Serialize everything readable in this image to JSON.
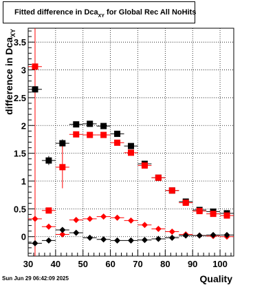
{
  "title": {
    "text": "Fitted difference in Dca",
    "subscript": "XY",
    "suffix": " for Global Rec All NoHits"
  },
  "footer": {
    "date": "Sun Jun 29 06:42:09 2025"
  },
  "chart_data": {
    "type": "scatter",
    "title": "Fitted difference in Dca_XY for Global Rec All NoHits",
    "xlabel": "Quality",
    "ylabel": "difference in Dca_XY",
    "xlim": [
      30,
      105
    ],
    "ylim": [
      -0.35,
      3.75
    ],
    "xticks": [
      30,
      40,
      50,
      60,
      70,
      80,
      90,
      100
    ],
    "yticks": [
      0,
      0.5,
      1,
      1.5,
      2,
      2.5,
      3,
      3.5
    ],
    "grid": true,
    "vertical_line_x": 32.5,
    "colors": {
      "black": "#000000",
      "red": "#ff0000"
    },
    "series": [
      {
        "marker": "square",
        "color": "#000000",
        "points": [
          {
            "x": 32.5,
            "y": 2.65,
            "err": 0.03
          },
          {
            "x": 37.5,
            "y": 1.37,
            "err": 0.08
          },
          {
            "x": 42.5,
            "y": 1.68,
            "err": 0.07
          },
          {
            "x": 47.5,
            "y": 2.02,
            "err": 0.02
          },
          {
            "x": 52.5,
            "y": 2.03,
            "err": 0.02
          },
          {
            "x": 57.5,
            "y": 1.99,
            "err": 0.02
          },
          {
            "x": 62.5,
            "y": 1.85,
            "err": 0.02
          },
          {
            "x": 67.5,
            "y": 1.63,
            "err": 0.02
          },
          {
            "x": 72.5,
            "y": 1.31,
            "err": 0.02
          },
          {
            "x": 77.5,
            "y": 1.06,
            "err": 0.02
          },
          {
            "x": 82.5,
            "y": 0.83,
            "err": 0.02
          },
          {
            "x": 87.5,
            "y": 0.63,
            "err": 0.02
          },
          {
            "x": 92.5,
            "y": 0.48,
            "err": 0.02
          },
          {
            "x": 97.5,
            "y": 0.45,
            "err": 0.02
          },
          {
            "x": 102.5,
            "y": 0.42,
            "err": 0.02
          }
        ]
      },
      {
        "marker": "square",
        "color": "#ff0000",
        "points": [
          {
            "x": 32.5,
            "y": 3.06,
            "err": 0.03
          },
          {
            "x": 37.5,
            "y": 0.47,
            "err": 0.03
          },
          {
            "x": 42.5,
            "y": 1.25,
            "err": 0.38
          },
          {
            "x": 47.5,
            "y": 1.84,
            "err": 0.02
          },
          {
            "x": 52.5,
            "y": 1.83,
            "err": 0.02
          },
          {
            "x": 57.5,
            "y": 1.83,
            "err": 0.02
          },
          {
            "x": 62.5,
            "y": 1.69,
            "err": 0.02
          },
          {
            "x": 67.5,
            "y": 1.51,
            "err": 0.02
          },
          {
            "x": 72.5,
            "y": 1.28,
            "err": 0.02
          },
          {
            "x": 77.5,
            "y": 1.06,
            "err": 0.02
          },
          {
            "x": 82.5,
            "y": 0.83,
            "err": 0.02
          },
          {
            "x": 87.5,
            "y": 0.61,
            "err": 0.02
          },
          {
            "x": 92.5,
            "y": 0.46,
            "err": 0.02
          },
          {
            "x": 97.5,
            "y": 0.41,
            "err": 0.02
          },
          {
            "x": 102.5,
            "y": 0.38,
            "err": 0.02
          }
        ]
      },
      {
        "marker": "diamond",
        "color": "#ff0000",
        "points": [
          {
            "x": 32.5,
            "y": 0.32,
            "err": 0.02
          },
          {
            "x": 37.5,
            "y": 0.18,
            "err": 0.02
          },
          {
            "x": 42.5,
            "y": 0.04,
            "err": 0.04
          },
          {
            "x": 47.5,
            "y": 0.3,
            "err": 0.02
          },
          {
            "x": 52.5,
            "y": 0.32,
            "err": 0.02
          },
          {
            "x": 57.5,
            "y": 0.36,
            "err": 0.02
          },
          {
            "x": 62.5,
            "y": 0.34,
            "err": 0.02
          },
          {
            "x": 67.5,
            "y": 0.29,
            "err": 0.02
          },
          {
            "x": 72.5,
            "y": 0.21,
            "err": 0.02
          },
          {
            "x": 77.5,
            "y": 0.14,
            "err": 0.02
          },
          {
            "x": 82.5,
            "y": 0.09,
            "err": 0.02
          },
          {
            "x": 87.5,
            "y": 0.04,
            "err": 0.02
          },
          {
            "x": 92.5,
            "y": 0.02,
            "err": 0.02
          },
          {
            "x": 97.5,
            "y": 0.01,
            "err": 0.02
          },
          {
            "x": 102.5,
            "y": 0.0,
            "err": 0.02
          }
        ]
      },
      {
        "marker": "diamond",
        "color": "#000000",
        "points": [
          {
            "x": 32.5,
            "y": -0.12,
            "err": 0.02
          },
          {
            "x": 37.5,
            "y": -0.07,
            "err": 0.03
          },
          {
            "x": 42.5,
            "y": 0.12,
            "err": 0.03
          },
          {
            "x": 47.5,
            "y": 0.07,
            "err": 0.02
          },
          {
            "x": 52.5,
            "y": -0.02,
            "err": 0.02
          },
          {
            "x": 57.5,
            "y": -0.05,
            "err": 0.02
          },
          {
            "x": 62.5,
            "y": -0.07,
            "err": 0.02
          },
          {
            "x": 67.5,
            "y": -0.07,
            "err": 0.02
          },
          {
            "x": 72.5,
            "y": -0.06,
            "err": 0.02
          },
          {
            "x": 77.5,
            "y": -0.04,
            "err": 0.02
          },
          {
            "x": 82.5,
            "y": -0.02,
            "err": 0.02
          },
          {
            "x": 87.5,
            "y": 0.02,
            "err": 0.02
          },
          {
            "x": 92.5,
            "y": 0.02,
            "err": 0.02
          },
          {
            "x": 97.5,
            "y": 0.03,
            "err": 0.02
          },
          {
            "x": 102.5,
            "y": 0.03,
            "err": 0.02
          }
        ]
      }
    ]
  }
}
